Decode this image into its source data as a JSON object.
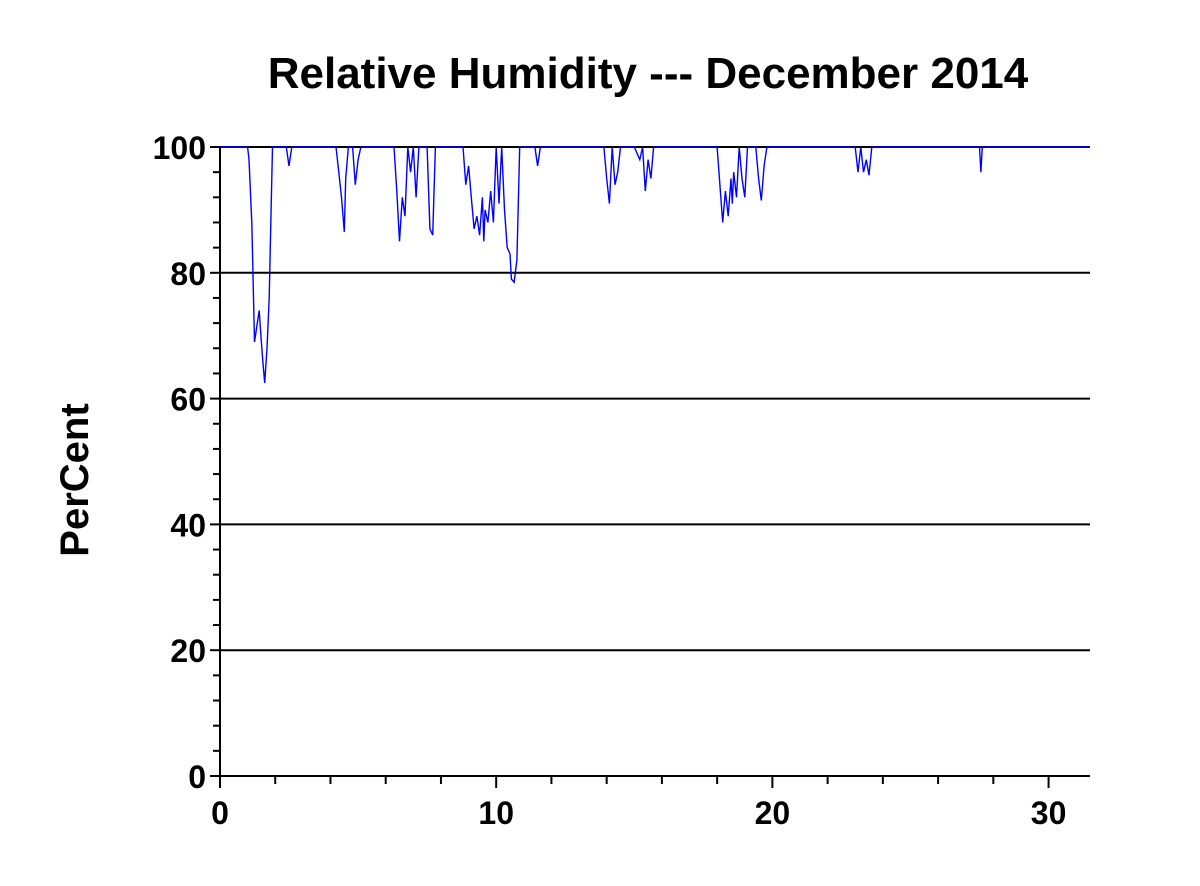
{
  "chart_data": {
    "type": "line",
    "title": "Relative Humidity --- December 2014",
    "xlabel": "",
    "ylabel": "PerCent",
    "xlim": [
      0,
      31.5
    ],
    "ylim": [
      0,
      100
    ],
    "x_ticks": [
      0,
      10,
      20,
      30
    ],
    "y_ticks": [
      0,
      20,
      40,
      60,
      80,
      100
    ],
    "grid": "horizontal",
    "colors": {
      "line": "#0000ff",
      "grid": "#000000",
      "axis": "#000000"
    },
    "series": [
      {
        "values": [
          [
            0.0,
            100
          ],
          [
            1.0,
            100
          ],
          [
            1.05,
            98
          ],
          [
            1.15,
            88
          ],
          [
            1.25,
            69
          ],
          [
            1.35,
            72
          ],
          [
            1.42,
            74
          ],
          [
            1.48,
            70
          ],
          [
            1.55,
            66
          ],
          [
            1.62,
            62.5
          ],
          [
            1.7,
            68
          ],
          [
            1.78,
            76
          ],
          [
            1.85,
            90
          ],
          [
            1.9,
            100
          ],
          [
            2.4,
            100
          ],
          [
            2.5,
            97
          ],
          [
            2.6,
            100
          ],
          [
            4.2,
            100
          ],
          [
            4.3,
            96
          ],
          [
            4.4,
            92
          ],
          [
            4.5,
            86.5
          ],
          [
            4.55,
            95
          ],
          [
            4.65,
            100
          ],
          [
            4.8,
            100
          ],
          [
            4.9,
            94
          ],
          [
            5.0,
            98
          ],
          [
            5.1,
            100
          ],
          [
            6.3,
            100
          ],
          [
            6.4,
            93
          ],
          [
            6.5,
            85
          ],
          [
            6.6,
            92
          ],
          [
            6.7,
            89
          ],
          [
            6.8,
            100
          ],
          [
            6.9,
            96
          ],
          [
            7.0,
            100
          ],
          [
            7.1,
            92
          ],
          [
            7.2,
            100
          ],
          [
            7.5,
            100
          ],
          [
            7.6,
            87
          ],
          [
            7.7,
            86
          ],
          [
            7.8,
            100
          ],
          [
            8.8,
            100
          ],
          [
            8.9,
            94
          ],
          [
            9.0,
            97
          ],
          [
            9.1,
            92
          ],
          [
            9.2,
            87
          ],
          [
            9.3,
            89
          ],
          [
            9.4,
            86
          ],
          [
            9.5,
            92
          ],
          [
            9.55,
            85
          ],
          [
            9.6,
            90
          ],
          [
            9.7,
            88
          ],
          [
            9.8,
            93
          ],
          [
            9.9,
            88
          ],
          [
            10.0,
            100
          ],
          [
            10.1,
            91
          ],
          [
            10.2,
            100
          ],
          [
            10.3,
            90
          ],
          [
            10.4,
            84
          ],
          [
            10.5,
            83
          ],
          [
            10.55,
            79
          ],
          [
            10.65,
            78.5
          ],
          [
            10.75,
            82
          ],
          [
            10.85,
            100
          ],
          [
            11.4,
            100
          ],
          [
            11.5,
            97
          ],
          [
            11.6,
            100
          ],
          [
            13.9,
            100
          ],
          [
            14.0,
            95
          ],
          [
            14.1,
            91
          ],
          [
            14.2,
            100
          ],
          [
            14.3,
            94
          ],
          [
            14.4,
            96
          ],
          [
            14.5,
            100
          ],
          [
            15.0,
            100
          ],
          [
            15.2,
            98
          ],
          [
            15.3,
            100
          ],
          [
            15.4,
            93
          ],
          [
            15.5,
            98
          ],
          [
            15.6,
            95
          ],
          [
            15.7,
            100
          ],
          [
            18.0,
            100
          ],
          [
            18.1,
            94
          ],
          [
            18.2,
            88
          ],
          [
            18.3,
            93
          ],
          [
            18.4,
            89
          ],
          [
            18.5,
            95
          ],
          [
            18.55,
            91
          ],
          [
            18.6,
            96
          ],
          [
            18.7,
            92
          ],
          [
            18.8,
            100
          ],
          [
            18.9,
            95
          ],
          [
            19.0,
            92
          ],
          [
            19.1,
            100
          ],
          [
            19.4,
            100
          ],
          [
            19.5,
            95
          ],
          [
            19.6,
            91.5
          ],
          [
            19.7,
            97
          ],
          [
            19.8,
            100
          ],
          [
            23.0,
            100
          ],
          [
            23.1,
            96
          ],
          [
            23.2,
            100
          ],
          [
            23.3,
            96
          ],
          [
            23.4,
            98
          ],
          [
            23.5,
            95.5
          ],
          [
            23.6,
            100
          ],
          [
            27.5,
            100
          ],
          [
            27.55,
            96
          ],
          [
            27.6,
            100
          ],
          [
            31.5,
            100
          ]
        ]
      }
    ]
  }
}
